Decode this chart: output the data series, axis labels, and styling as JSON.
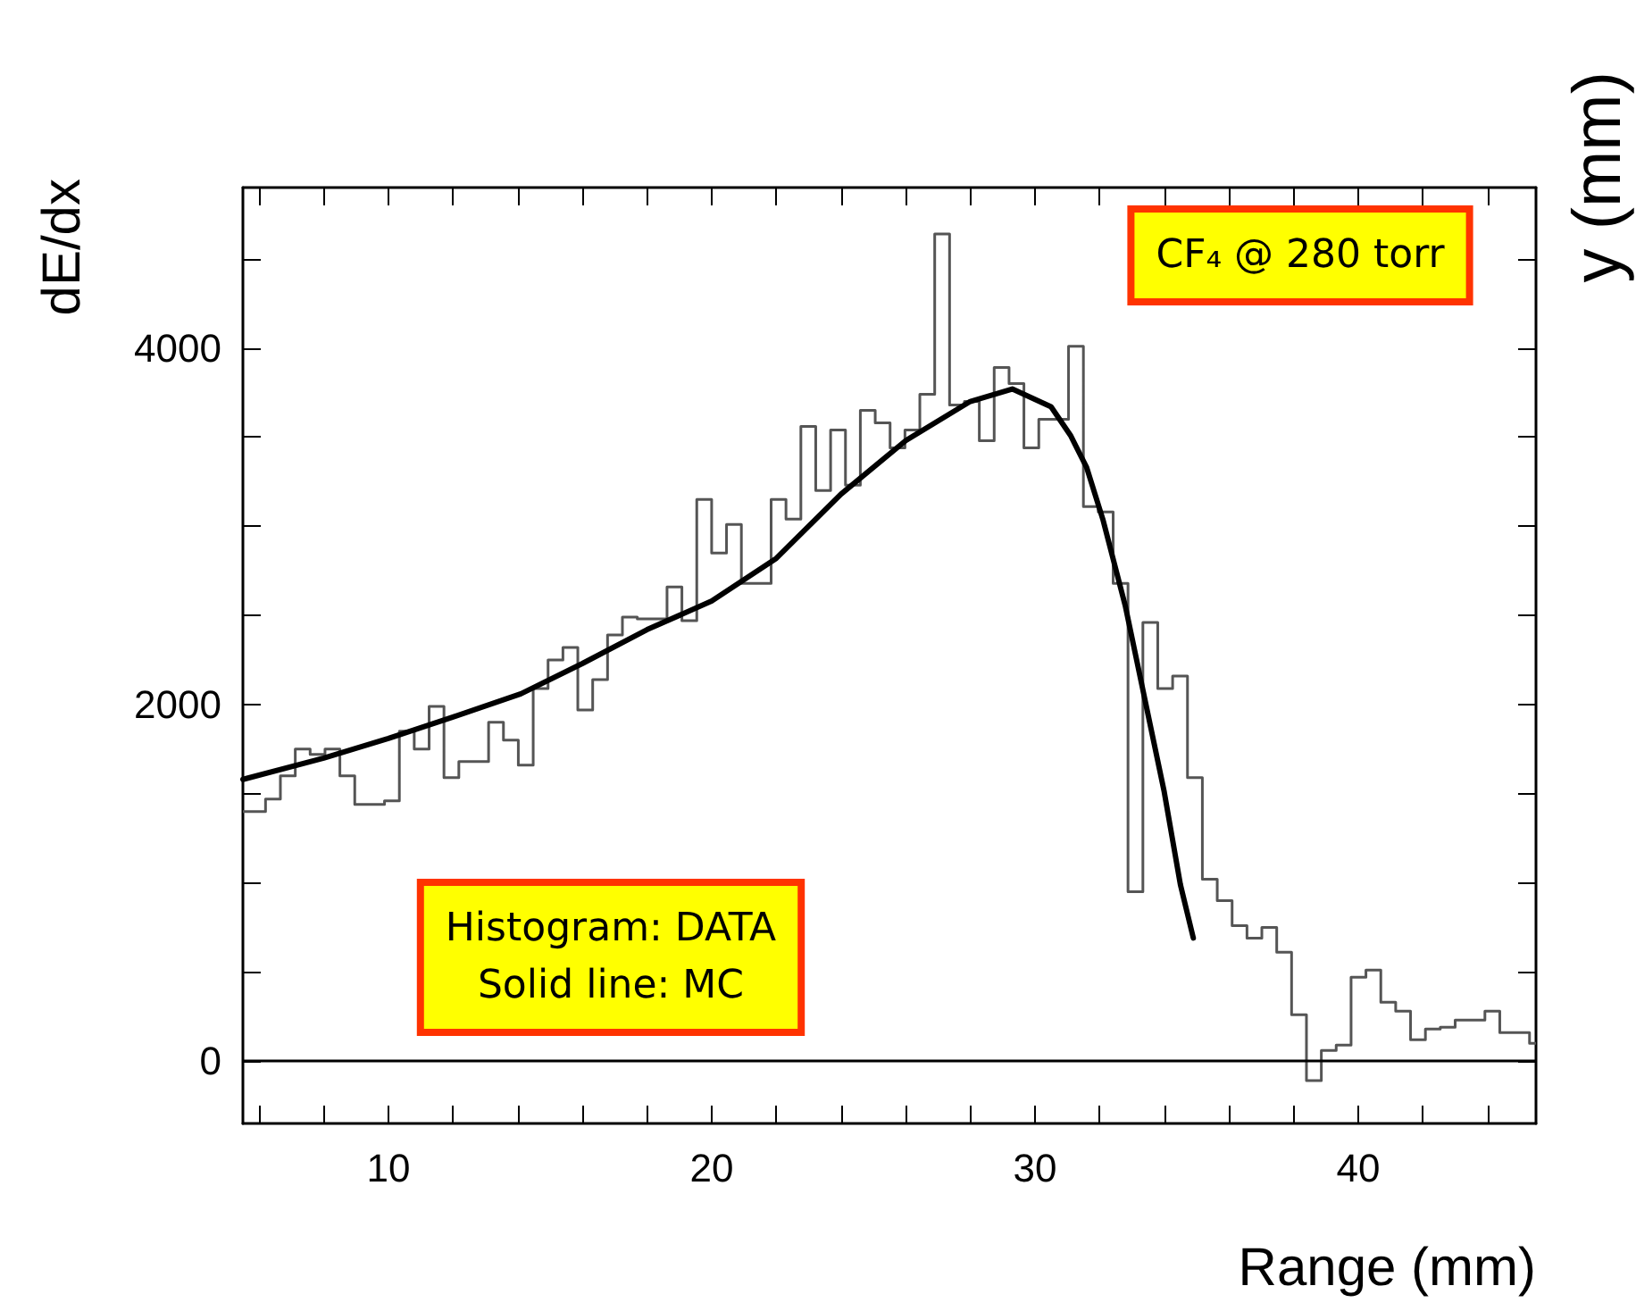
{
  "chart_data": {
    "type": "histogram",
    "xlabel": "Range (mm)",
    "ylabel": "dE/dx",
    "bins": [
      5.5,
      5.74,
      6.2,
      6.66,
      7.12,
      7.58,
      8.04,
      8.5,
      8.96,
      9.42,
      9.88,
      10.34,
      10.8,
      11.26,
      11.72,
      12.18,
      12.64,
      13.1,
      13.56,
      14.02,
      14.48,
      14.94,
      15.4,
      15.86,
      16.32,
      16.78,
      17.24,
      17.7,
      18.16,
      18.62,
      19.08,
      19.54,
      20,
      20.46,
      20.92,
      21.38,
      21.84,
      22.3,
      22.76,
      23.22,
      23.68,
      24.14,
      24.6,
      25.06,
      25.52,
      25.98,
      26.44,
      26.9,
      27.36,
      27.82,
      28.28,
      28.74,
      29.2,
      29.66,
      30.12,
      30.58,
      31.04,
      31.5,
      31.96,
      32.42,
      32.88,
      33.34,
      33.8,
      34.26,
      34.72,
      35.18,
      35.64,
      36.1,
      36.56,
      37.02,
      37.48,
      37.94,
      38.4,
      38.86,
      39.32,
      39.78,
      40.24,
      40.7,
      41.16,
      41.62,
      42.08,
      42.54,
      43,
      43.46,
      43.92,
      44.38,
      44.84,
      45.3,
      45.5
    ],
    "series": [
      {
        "color": "#555555",
        "values": [
          1400,
          1400,
          1470,
          1600,
          1750,
          1720,
          1750,
          1600,
          1440,
          1440,
          1460,
          1850,
          1750,
          1990,
          1590,
          1680,
          1680,
          1900,
          1800,
          1660,
          2090,
          2250,
          2320,
          1970,
          2140,
          2390,
          2490,
          2480,
          2480,
          2660,
          2470,
          3150,
          2850,
          3010,
          2680,
          2680,
          3150,
          3040,
          3560,
          3200,
          3540,
          3230,
          3650,
          3580,
          3440,
          3540,
          3740,
          4640,
          3680,
          3700,
          3480,
          3890,
          3800,
          3440,
          3600,
          3600,
          4010,
          3110,
          3080,
          2680,
          950,
          2460,
          2090,
          2160,
          1590,
          1020,
          900,
          760,
          690,
          750,
          610,
          260,
          -110,
          60,
          90,
          470,
          510,
          330,
          280,
          120,
          180,
          190,
          230,
          230,
          280,
          160,
          160,
          100
        ]
      },
      {
        "type": "line",
        "color": "#000000",
        "x": [
          5.5,
          8,
          10,
          12,
          14.1,
          16,
          18,
          20,
          22,
          24,
          26,
          28,
          29.3,
          30.5,
          31.1,
          31.6,
          32.1,
          32.8,
          33.4,
          34,
          34.5,
          34.9
        ],
        "values": [
          1580,
          1700,
          1810,
          1930,
          2060,
          2230,
          2420,
          2580,
          2820,
          3180,
          3480,
          3700,
          3770,
          3670,
          3510,
          3330,
          3040,
          2550,
          2030,
          1510,
          990,
          690
        ]
      }
    ],
    "xlim": [
      5.5,
      45.5
    ],
    "ylim": [
      -350,
      4900
    ],
    "xticks": [
      {
        "value": 6,
        "label": null
      },
      {
        "value": 8,
        "label": null
      },
      10,
      {
        "value": 12,
        "label": null
      },
      {
        "value": 14,
        "label": null
      },
      {
        "value": 16,
        "label": null
      },
      {
        "value": 18,
        "label": null
      },
      20,
      {
        "value": 22,
        "label": null
      },
      {
        "value": 24,
        "label": null
      },
      {
        "value": 26,
        "label": null
      },
      {
        "value": 28,
        "label": null
      },
      30,
      {
        "value": 32,
        "label": null
      },
      {
        "value": 34,
        "label": null
      },
      {
        "value": 36,
        "label": null
      },
      {
        "value": 38,
        "label": null
      },
      40,
      {
        "value": 42,
        "label": null
      },
      {
        "value": 44,
        "label": null
      }
    ],
    "yticks": [
      {
        "value": 0,
        "label": "0"
      },
      {
        "value": 500,
        "label": null
      },
      {
        "value": 1000,
        "label": null
      },
      {
        "value": 1500,
        "label": null
      },
      2000,
      {
        "value": 2500,
        "label": null
      },
      {
        "value": 3000,
        "label": null
      },
      {
        "value": 3500,
        "label": null
      },
      4000,
      {
        "value": 4500,
        "label": null
      }
    ],
    "ref_lines": [
      {
        "axis": "y",
        "value": 0,
        "color": "#000000"
      }
    ],
    "annotations": [
      "CF₄ @ 280 torr",
      "Histogram: DATA\nSolid line: MC",
      "y (mm)"
    ],
    "grid": false,
    "marker": "none",
    "line_style": "solid"
  }
}
